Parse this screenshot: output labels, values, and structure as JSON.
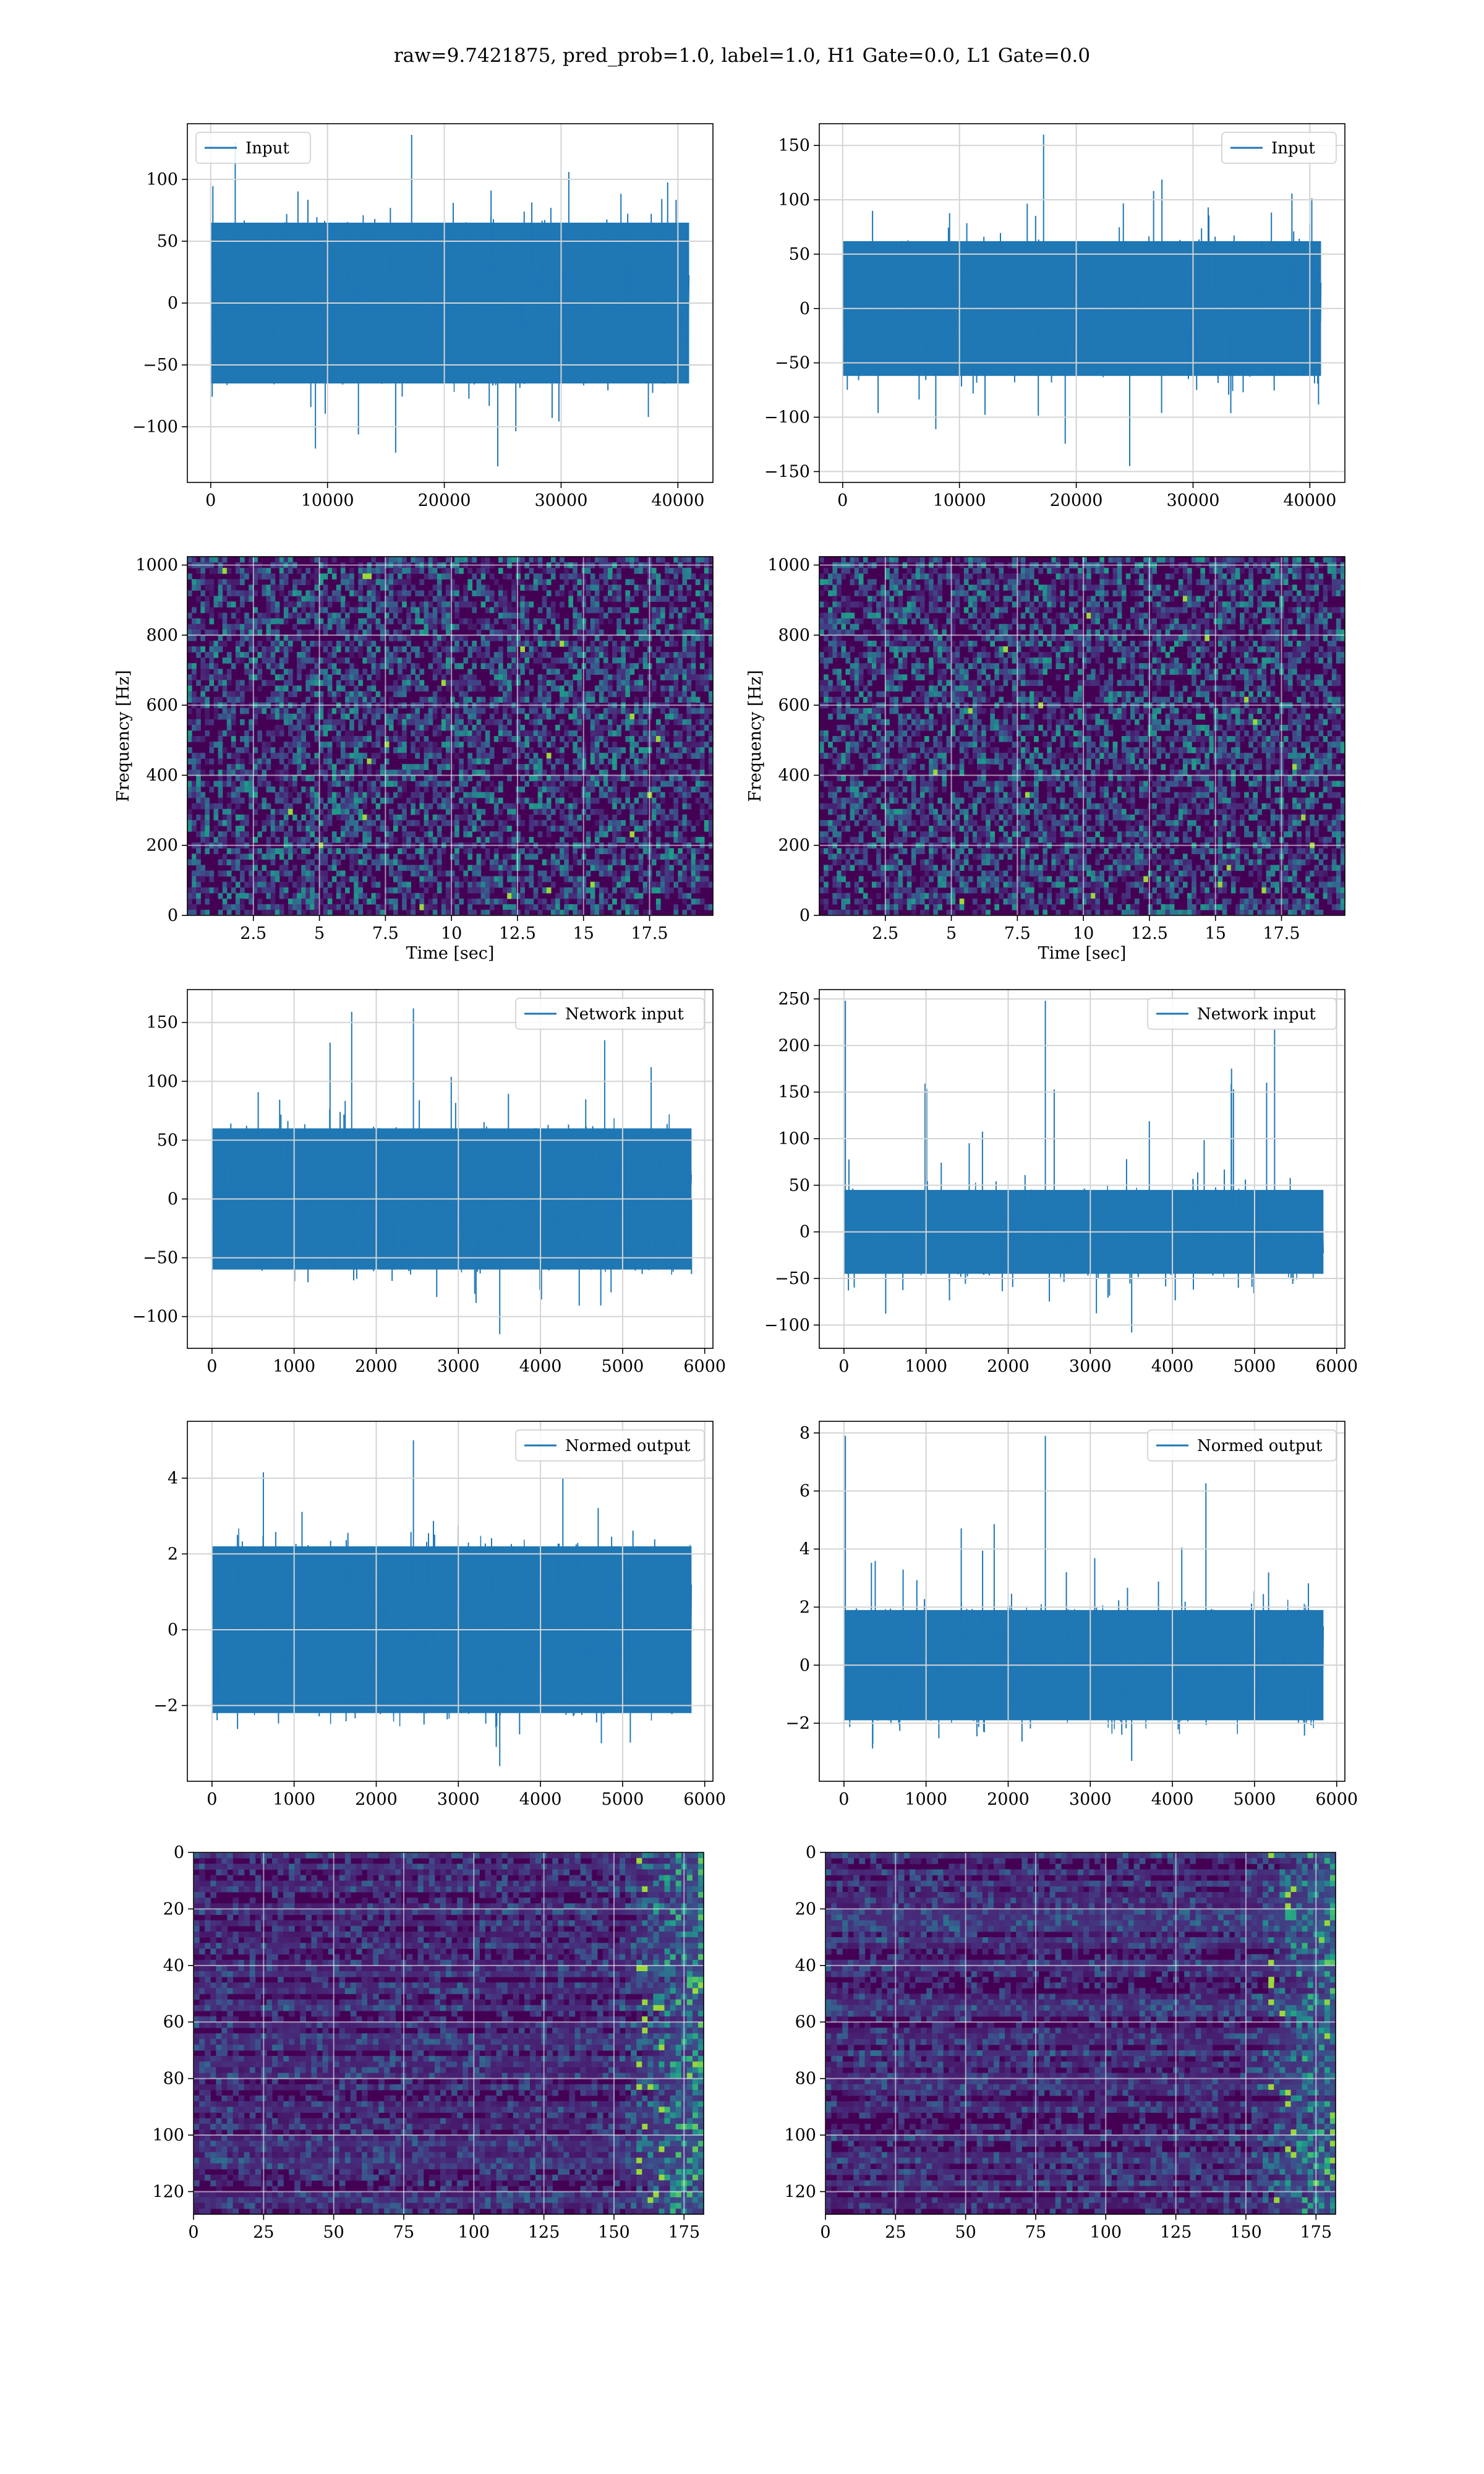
{
  "figure": {
    "suptitle": "raw=9.7421875, pred_prob=1.0, label=1.0, H1 Gate=0.0, L1 Gate=0.0"
  },
  "colors": {
    "line": "#1f77b4",
    "grid": "#d4d4d4",
    "viridis_low": "#440154",
    "viridis_mid": "#21918c",
    "viridis_high": "#fde725"
  },
  "chart_data": [
    {
      "id": "input-h1",
      "type": "line",
      "legend": "Input",
      "legend_loc": "upper-left",
      "xlim": [
        -2000,
        43000
      ],
      "ylim": [
        -145,
        145
      ],
      "xticks": [
        0,
        10000,
        20000,
        30000,
        40000
      ],
      "yticks": [
        -100,
        -50,
        0,
        50,
        100
      ],
      "series": [
        {
          "n": 40960,
          "band": 65,
          "spike_max": 136,
          "spike_min": -132,
          "std": 20
        }
      ],
      "grid": true
    },
    {
      "id": "input-l1",
      "type": "line",
      "legend": "Input",
      "legend_loc": "upper-right",
      "xlim": [
        -2000,
        43000
      ],
      "ylim": [
        -160,
        170
      ],
      "xticks": [
        0,
        10000,
        20000,
        30000,
        40000
      ],
      "yticks": [
        -150,
        -100,
        -50,
        0,
        50,
        100,
        150
      ],
      "series": [
        {
          "n": 40960,
          "band": 62,
          "spike_max": 160,
          "spike_min": -145,
          "std": 20
        }
      ],
      "grid": true
    },
    {
      "id": "spectrogram-h1",
      "type": "heatmap",
      "xlabel": "Time [sec]",
      "ylabel": "Frequency [Hz]",
      "xlim": [
        0,
        19.9
      ],
      "ylim": [
        0,
        1024
      ],
      "xticks": [
        2.5,
        5.0,
        7.5,
        10.0,
        12.5,
        15.0,
        17.5
      ],
      "yticks": [
        0,
        200,
        400,
        600,
        800,
        1000
      ],
      "grid": true
    },
    {
      "id": "spectrogram-l1",
      "type": "heatmap",
      "xlabel": "Time [sec]",
      "ylabel": "Frequency [Hz]",
      "xlim": [
        0,
        19.9
      ],
      "ylim": [
        0,
        1024
      ],
      "xticks": [
        2.5,
        5.0,
        7.5,
        10.0,
        12.5,
        15.0,
        17.5
      ],
      "yticks": [
        0,
        200,
        400,
        600,
        800,
        1000
      ],
      "grid": true
    },
    {
      "id": "network-input-h1",
      "type": "line",
      "legend": "Network input",
      "legend_loc": "upper-right",
      "xlim": [
        -300,
        6100
      ],
      "ylim": [
        -127,
        178
      ],
      "xticks": [
        0,
        1000,
        2000,
        3000,
        4000,
        5000,
        6000
      ],
      "yticks": [
        -100,
        -50,
        0,
        50,
        100,
        150
      ],
      "series": [
        {
          "n": 5840,
          "band": 60,
          "spike_max": 162,
          "spike_min": -115,
          "std": 22
        }
      ],
      "grid": true
    },
    {
      "id": "network-input-l1",
      "type": "line",
      "legend": "Network input",
      "legend_loc": "upper-right",
      "xlim": [
        -300,
        6100
      ],
      "ylim": [
        -125,
        260
      ],
      "xticks": [
        0,
        1000,
        2000,
        3000,
        4000,
        5000,
        6000
      ],
      "yticks": [
        -100,
        -50,
        0,
        50,
        100,
        150,
        200,
        250
      ],
      "series": [
        {
          "n": 5840,
          "band": 45,
          "spike_max": 248,
          "spike_min": -108,
          "std": 18
        }
      ],
      "grid": true
    },
    {
      "id": "normed-output-h1",
      "type": "line",
      "legend": "Normed output",
      "legend_loc": "upper-right",
      "xlim": [
        -300,
        6100
      ],
      "ylim": [
        -4.0,
        5.5
      ],
      "xticks": [
        0,
        1000,
        2000,
        3000,
        4000,
        5000,
        6000
      ],
      "yticks": [
        -2,
        0,
        2,
        4
      ],
      "series": [
        {
          "n": 5840,
          "band": 2.2,
          "spike_max": 5.0,
          "spike_min": -3.6,
          "std": 0.9
        }
      ],
      "grid": true
    },
    {
      "id": "normed-output-l1",
      "type": "line",
      "legend": "Normed output",
      "legend_loc": "upper-right",
      "xlim": [
        -300,
        6100
      ],
      "ylim": [
        -4.0,
        8.4
      ],
      "xticks": [
        0,
        1000,
        2000,
        3000,
        4000,
        5000,
        6000
      ],
      "yticks": [
        -2,
        0,
        2,
        4,
        6,
        8
      ],
      "series": [
        {
          "n": 5840,
          "band": 1.9,
          "spike_max": 7.9,
          "spike_min": -3.3,
          "std": 0.8
        }
      ],
      "grid": true
    },
    {
      "id": "feature-map-h1",
      "type": "heatmap",
      "xlim": [
        0,
        182
      ],
      "ylim": [
        128,
        0
      ],
      "xticks": [
        0,
        25,
        50,
        75,
        100,
        125,
        150,
        175
      ],
      "yticks": [
        0,
        20,
        40,
        60,
        80,
        100,
        120
      ],
      "grid": true
    },
    {
      "id": "feature-map-l1",
      "type": "heatmap",
      "xlim": [
        0,
        182
      ],
      "ylim": [
        128,
        0
      ],
      "xticks": [
        0,
        25,
        50,
        75,
        100,
        125,
        150,
        175
      ],
      "yticks": [
        0,
        20,
        40,
        60,
        80,
        100,
        120
      ],
      "grid": true
    }
  ]
}
